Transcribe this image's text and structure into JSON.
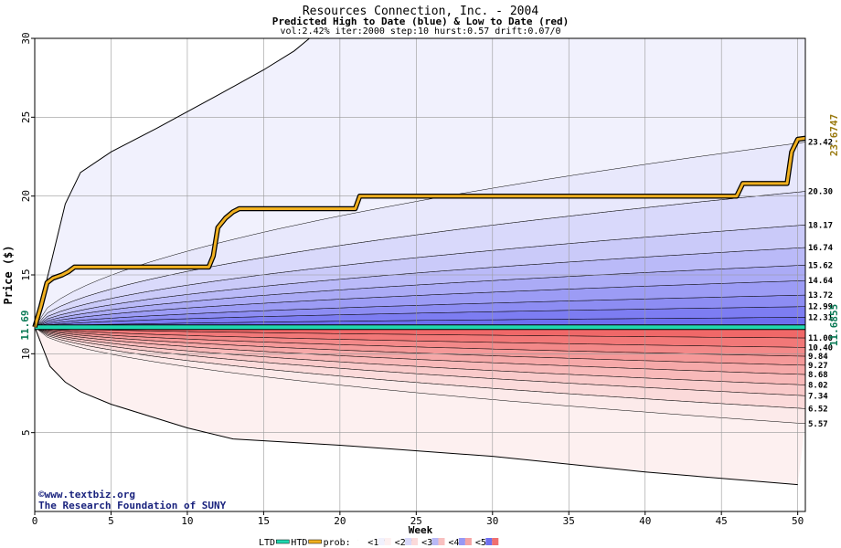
{
  "chart_data": {
    "type": "area",
    "title": "Resources Connection, Inc. - 2004",
    "subtitle": "Predicted High to Date (blue) &  Low to Date (red)",
    "params": "vol:2.42% iter:2000 step:10 hurst:0.57 drift:0.07/0",
    "xlabel": "Week",
    "ylabel": "Price ($)",
    "xlim": [
      0,
      50.5
    ],
    "ylim": [
      0,
      30
    ],
    "x_ticks": [
      0,
      5,
      10,
      15,
      20,
      25,
      30,
      35,
      40,
      45,
      50
    ],
    "y_ticks": [
      5,
      10,
      15,
      20,
      25,
      30
    ],
    "grid": true,
    "start_price": 11.69,
    "start_label": "11.69",
    "colors": {
      "htd_line": "#f0b020",
      "ltd_line": "#20d8b0",
      "blue_dark": "#6e6ef0",
      "blue_light": "#e8e8fc",
      "red_dark": "#f06868",
      "red_light": "#fceaea",
      "label_green": "#0a7a55",
      "label_gold": "#9a7a10"
    },
    "blue_percentiles": [
      {
        "end": 12.31,
        "label": "12.31"
      },
      {
        "end": 12.99,
        "label": "12.99"
      },
      {
        "end": 13.72,
        "label": "13.72"
      },
      {
        "end": 14.64,
        "label": "14.64"
      },
      {
        "end": 15.62,
        "label": "15.62"
      },
      {
        "end": 16.74,
        "label": "16.74"
      },
      {
        "end": 18.17,
        "label": "18.17"
      },
      {
        "end": 20.3,
        "label": "20.30"
      },
      {
        "end": 23.42,
        "label": "23.42"
      }
    ],
    "red_percentiles": [
      {
        "end": 11.0,
        "label": "11.00"
      },
      {
        "end": 10.4,
        "label": "10.40"
      },
      {
        "end": 9.84,
        "label": "9.84"
      },
      {
        "end": 9.27,
        "label": "9.27"
      },
      {
        "end": 8.68,
        "label": "8.68"
      },
      {
        "end": 8.02,
        "label": "8.02"
      },
      {
        "end": 7.34,
        "label": "7.34"
      },
      {
        "end": 6.52,
        "label": "6.52"
      },
      {
        "end": 5.57,
        "label": "5.57"
      }
    ],
    "max_envelope": [
      [
        0,
        11.69
      ],
      [
        1,
        15.5
      ],
      [
        2,
        19.5
      ],
      [
        3,
        21.5
      ],
      [
        5,
        22.8
      ],
      [
        8,
        24.3
      ],
      [
        12,
        26.4
      ],
      [
        15,
        28.0
      ],
      [
        17,
        29.2
      ],
      [
        18,
        30.0
      ]
    ],
    "min_envelope": [
      [
        0,
        11.69
      ],
      [
        1,
        9.2
      ],
      [
        2,
        8.2
      ],
      [
        3,
        7.6
      ],
      [
        5,
        6.8
      ],
      [
        10,
        5.3
      ],
      [
        13,
        4.6
      ],
      [
        20,
        4.2
      ],
      [
        30,
        3.5
      ],
      [
        40,
        2.5
      ],
      [
        50,
        1.7
      ]
    ],
    "htd_series": {
      "name": "HTD",
      "points": [
        [
          0,
          11.69
        ],
        [
          0.4,
          13.0
        ],
        [
          0.8,
          14.5
        ],
        [
          1.2,
          14.8
        ],
        [
          1.8,
          15.0
        ],
        [
          2.2,
          15.2
        ],
        [
          2.6,
          15.5
        ],
        [
          11.4,
          15.5
        ],
        [
          11.7,
          16.2
        ],
        [
          12.0,
          18.0
        ],
        [
          12.5,
          18.6
        ],
        [
          13.0,
          19.0
        ],
        [
          13.4,
          19.2
        ],
        [
          21.0,
          19.2
        ],
        [
          21.3,
          20.0
        ],
        [
          46.0,
          20.0
        ],
        [
          46.4,
          20.8
        ],
        [
          49.3,
          20.8
        ],
        [
          49.6,
          22.8
        ],
        [
          50.0,
          23.6
        ],
        [
          50.5,
          23.67
        ]
      ],
      "end_label": "23.6747"
    },
    "ltd_series": {
      "name": "LTD",
      "points": [
        [
          0,
          11.69
        ],
        [
          50.5,
          11.69
        ]
      ],
      "end_label": "11.6855"
    },
    "legend": {
      "placement": "bottom",
      "ltd": "LTD",
      "htd": "HTD",
      "prob_prefix": "prob:",
      "items": [
        "0%",
        "<10%",
        "<20%",
        "<30%",
        "<40%",
        "<50%"
      ]
    },
    "credit": {
      "symbol": "©",
      "site": "www.textbiz.org",
      "org": "The Research Foundation of SUNY"
    }
  }
}
